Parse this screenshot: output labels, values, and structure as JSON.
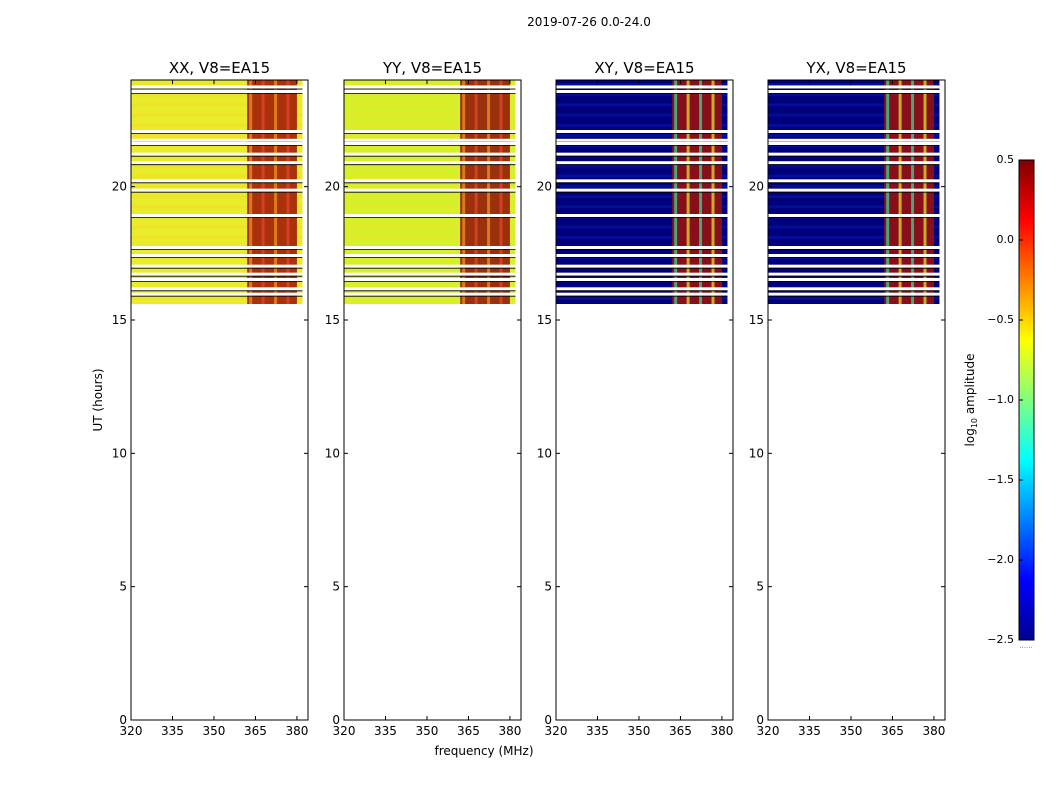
{
  "figure": {
    "suptitle": "2019-07-26 0.0-24.0"
  },
  "chart_data": {
    "type": "heatmap",
    "xlabel": "frequency (MHz)",
    "ylabel": "UT (hours)",
    "xlim": [
      320,
      384
    ],
    "ylim": [
      0,
      24
    ],
    "xticks": [
      320,
      335,
      350,
      365,
      380
    ],
    "yticks": [
      0,
      5,
      10,
      15,
      20
    ],
    "data_extent_ut_hours": [
      15.6,
      24.0
    ],
    "panels": [
      {
        "title": "XX, V8=EA15",
        "base": "#e8ec2a",
        "base2": "#f2dc26",
        "hot": "#9e1208"
      },
      {
        "title": "YY, V8=EA15",
        "base": "#d6f02a",
        "base2": "#e9e52a",
        "hot": "#8f0f08"
      },
      {
        "title": "XY, V8=EA15",
        "base": "#00007a",
        "base2": "#0418b8",
        "hot": "#a01008"
      },
      {
        "title": "YX, V8=EA15",
        "base": "#00007a",
        "base2": "#0418b8",
        "hot": "#a01008"
      }
    ],
    "hot_band_mhz": [
      362,
      380
    ],
    "gap_bands_ut": [
      23.72,
      23.55,
      22.05,
      21.72,
      21.6,
      21.2,
      20.88,
      20.2,
      19.85,
      18.9,
      17.7,
      17.4,
      17.0,
      16.7,
      16.5,
      16.15,
      15.95
    ],
    "colorbar": {
      "label": "log",
      "label_sub": "10",
      "label_rest": " amplitude",
      "range": [
        -2.5,
        0.5
      ],
      "ticks": [
        "0.5",
        "0.0",
        "−0.5",
        "−1.0",
        "−1.5",
        "−2.0",
        "−2.5"
      ],
      "tick_values": [
        0.5,
        0.0,
        -0.5,
        -1.0,
        -1.5,
        -2.0,
        -2.5
      ],
      "colors": [
        "#800000",
        "#ff0000",
        "#ff8000",
        "#ffff00",
        "#80ff80",
        "#00ffff",
        "#0080ff",
        "#0000ff",
        "#00008f"
      ],
      "dots": "......"
    }
  }
}
